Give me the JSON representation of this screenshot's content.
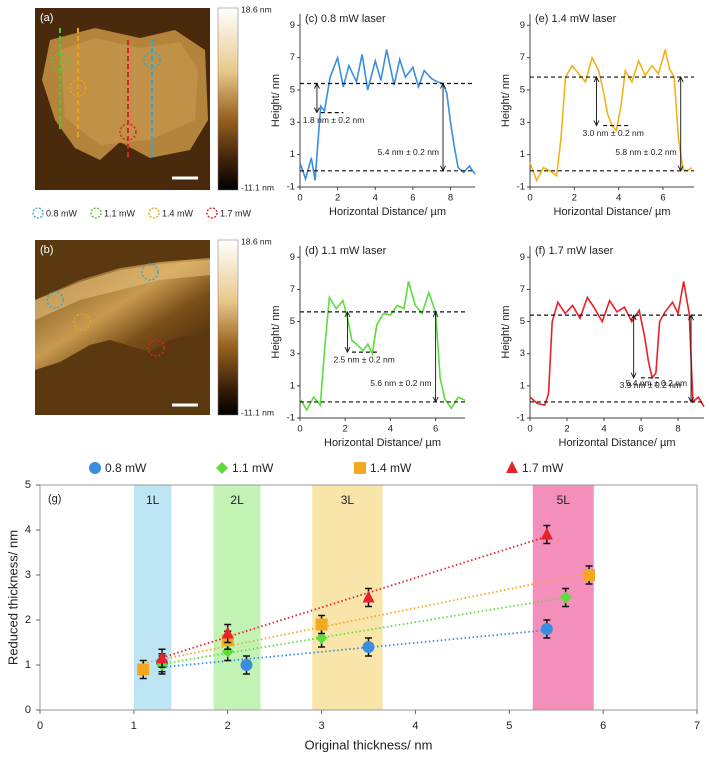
{
  "afm_panels": [
    {
      "label": "(a)",
      "colorbar_max": "18.6 nm",
      "colorbar_min": "-11.1 nm"
    },
    {
      "label": "(b)",
      "colorbar_max": "18.6 nm",
      "colorbar_min": "-11.1 nm"
    }
  ],
  "circle_legend": [
    {
      "name": "0.8 mW",
      "color": "#3aa6c8"
    },
    {
      "name": "1.1 mW",
      "color": "#58c23a"
    },
    {
      "name": "1.4 mW",
      "color": "#e8a41c"
    },
    {
      "name": "1.7 mW",
      "color": "#d3262a"
    }
  ],
  "chart_data": [
    {
      "type": "line",
      "title": "(c) 0.8 mW laser",
      "x_label": "Horizontal Distance/ µm",
      "y_label": "Height/ nm",
      "color": "#3b8de0",
      "xlim": [
        0,
        9.3
      ],
      "xticks": [
        0,
        2,
        4,
        6,
        8
      ],
      "ylim": [
        -1,
        9.7
      ],
      "yticks": [
        -1,
        1,
        3,
        5,
        7,
        9
      ],
      "x": [
        0,
        0.3,
        0.6,
        0.8,
        1.0,
        1.1,
        1.3,
        1.6,
        2.0,
        2.3,
        2.6,
        3.0,
        3.3,
        3.6,
        4.0,
        4.3,
        4.6,
        5.0,
        5.3,
        5.6,
        6.0,
        6.3,
        6.6,
        7.0,
        7.3,
        7.6,
        7.8,
        8.0,
        8.2,
        8.4,
        8.7,
        9.0,
        9.3
      ],
      "values": [
        0.5,
        -0.5,
        0.8,
        -0.6,
        2.5,
        4.0,
        3.7,
        5.8,
        7.0,
        5.2,
        6.5,
        5.5,
        7.2,
        5.0,
        6.8,
        5.6,
        7.5,
        5.3,
        6.9,
        5.8,
        6.4,
        5.2,
        6.2,
        5.7,
        5.5,
        5.4,
        4.8,
        3.0,
        1.5,
        0.2,
        -0.1,
        0.3,
        -0.2
      ],
      "levels": [
        {
          "y": 5.4,
          "from": 0,
          "to": 9.3
        },
        {
          "y": 0,
          "from": 0,
          "to": 9.3
        },
        {
          "y": 3.6,
          "from": 1.1,
          "to": 2.3
        }
      ],
      "arrows": [
        {
          "x": 7.6,
          "from": 0,
          "to": 5.4,
          "text": "5.4 nm ± 0.2 nm"
        },
        {
          "x": 0.9,
          "from": 3.6,
          "to": 5.4,
          "text": "1.8 nm ± 0.2 nm"
        }
      ]
    },
    {
      "type": "line",
      "title": "(d) 1.1 mW laser",
      "x_label": "Horizontal Distance/ µm",
      "y_label": "Height/ nm",
      "color": "#5ddc3c",
      "xlim": [
        0,
        7.3
      ],
      "xticks": [
        0,
        2,
        4,
        6
      ],
      "ylim": [
        -1,
        9.7
      ],
      "yticks": [
        -1,
        1,
        3,
        5,
        7,
        9
      ],
      "x": [
        0,
        0.3,
        0.6,
        0.9,
        1.1,
        1.3,
        1.6,
        1.9,
        2.1,
        2.3,
        2.5,
        2.8,
        3.0,
        3.2,
        3.4,
        3.7,
        4.0,
        4.3,
        4.6,
        4.8,
        5.1,
        5.4,
        5.7,
        6.0,
        6.2,
        6.4,
        6.7,
        7.0,
        7.3
      ],
      "values": [
        0.2,
        -0.5,
        0.3,
        -0.2,
        3.5,
        6.5,
        5.8,
        6.3,
        5.2,
        3.8,
        3.6,
        3.2,
        3.6,
        3.0,
        4.8,
        5.5,
        5.4,
        6.0,
        5.8,
        7.5,
        6.0,
        5.5,
        6.8,
        5.6,
        1.5,
        0.2,
        -0.4,
        0.3,
        0.1
      ],
      "levels": [
        {
          "y": 5.6,
          "from": 0,
          "to": 7.3
        },
        {
          "y": 0,
          "from": 0,
          "to": 7.3
        },
        {
          "y": 3.1,
          "from": 2.3,
          "to": 3.4
        }
      ],
      "arrows": [
        {
          "x": 6.0,
          "from": 0,
          "to": 5.6,
          "text": "5.6 nm ± 0.2 nm"
        },
        {
          "x": 2.1,
          "from": 3.1,
          "to": 5.6,
          "text": "2.5 nm ± 0.2 nm"
        }
      ]
    },
    {
      "type": "line",
      "title": "(e) 1.4 mW laser",
      "x_label": "Horizontal Distance/ µm",
      "y_label": "Height/ nm",
      "color": "#f2b21c",
      "xlim": [
        0,
        7.4
      ],
      "xticks": [
        0,
        2,
        4,
        6
      ],
      "ylim": [
        -1,
        9.7
      ],
      "yticks": [
        -1,
        1,
        3,
        5,
        7,
        9
      ],
      "x": [
        0,
        0.3,
        0.6,
        0.9,
        1.2,
        1.4,
        1.6,
        1.9,
        2.2,
        2.5,
        2.8,
        3.1,
        3.3,
        3.5,
        3.7,
        3.9,
        4.1,
        4.3,
        4.6,
        4.9,
        5.2,
        5.5,
        5.8,
        6.1,
        6.3,
        6.5,
        6.7,
        6.9,
        7.1,
        7.3
      ],
      "values": [
        0.5,
        -0.6,
        0.2,
        0.0,
        -0.3,
        2.0,
        5.8,
        6.5,
        6.0,
        5.5,
        7.0,
        6.2,
        5.0,
        3.5,
        2.8,
        2.5,
        4.0,
        6.2,
        5.5,
        6.8,
        5.9,
        6.5,
        6.0,
        7.5,
        6.3,
        5.8,
        2.0,
        0.1,
        0.0,
        0.2
      ],
      "levels": [
        {
          "y": 5.8,
          "from": 0,
          "to": 7.4
        },
        {
          "y": 0,
          "from": 0,
          "to": 7.4
        },
        {
          "y": 2.8,
          "from": 3.3,
          "to": 4.5
        }
      ],
      "arrows": [
        {
          "x": 6.8,
          "from": 0,
          "to": 5.8,
          "text": "5.8 nm ± 0.2 nm"
        },
        {
          "x": 3.0,
          "from": 2.8,
          "to": 5.8,
          "text": "3.0 nm ± 0.2 nm"
        }
      ]
    },
    {
      "type": "line",
      "title": "(f) 1.7 mW laser",
      "x_label": "Horizontal Distance/ µm",
      "y_label": "Height/ nm",
      "color": "#e8202a",
      "xlim": [
        0,
        9.4
      ],
      "xticks": [
        0,
        2,
        4,
        6,
        8
      ],
      "ylim": [
        -1,
        9.7
      ],
      "yticks": [
        -1,
        1,
        3,
        5,
        7,
        9
      ],
      "x": [
        0,
        0.4,
        0.8,
        1.0,
        1.2,
        1.5,
        1.9,
        2.3,
        2.7,
        3.1,
        3.5,
        3.9,
        4.3,
        4.7,
        5.1,
        5.5,
        5.9,
        6.2,
        6.4,
        6.6,
        6.8,
        7.0,
        7.3,
        7.7,
        8.0,
        8.3,
        8.6,
        8.8,
        9.1,
        9.4
      ],
      "values": [
        0.3,
        -0.1,
        -0.2,
        0.5,
        5.0,
        6.2,
        5.5,
        6.0,
        5.2,
        6.5,
        5.8,
        5.0,
        6.3,
        5.6,
        5.9,
        5.0,
        5.7,
        4.0,
        2.5,
        1.5,
        1.8,
        5.0,
        5.6,
        6.2,
        5.5,
        7.5,
        5.5,
        0.0,
        0.3,
        -0.3
      ],
      "levels": [
        {
          "y": 5.4,
          "from": 0,
          "to": 9.4
        },
        {
          "y": 0,
          "from": 0,
          "to": 9.4
        },
        {
          "y": 1.5,
          "from": 6.0,
          "to": 7.0
        }
      ],
      "arrows": [
        {
          "x": 8.7,
          "from": 0,
          "to": 5.4,
          "text": "5.4 nm ± 0.2 nm"
        },
        {
          "x": 5.6,
          "from": 1.5,
          "to": 5.4,
          "text": "3.9 nm ± 0.2 nm"
        }
      ]
    },
    {
      "type": "scatter",
      "label": "(g)",
      "x_label": "Original thickness/ nm",
      "y_label": "Reduced thickness/ nm",
      "xlim": [
        0,
        7
      ],
      "xticks": [
        0,
        1,
        2,
        3,
        4,
        5,
        6,
        7
      ],
      "ylim": [
        0,
        5
      ],
      "yticks": [
        0,
        1,
        2,
        3,
        4,
        5
      ],
      "trendlines": true,
      "bands": [
        {
          "label": "1L",
          "from": 1.0,
          "to": 1.4,
          "color": "#b3e0f2"
        },
        {
          "label": "2L",
          "from": 1.85,
          "to": 2.35,
          "color": "#b8f0a8"
        },
        {
          "label": "3L",
          "from": 2.9,
          "to": 3.65,
          "color": "#f8e09a"
        },
        {
          "label": "5L",
          "from": 5.25,
          "to": 5.9,
          "color": "#f27bb0"
        }
      ],
      "series": [
        {
          "name": "0.8 mW",
          "color": "#3b8de0",
          "marker": "circle",
          "x": [
            1.3,
            2.2,
            3.5,
            5.4
          ],
          "values": [
            1.05,
            1.0,
            1.4,
            1.8
          ],
          "errors": [
            0.2,
            0.2,
            0.2,
            0.2
          ]
        },
        {
          "name": "1.1 mW",
          "color": "#5ddc3c",
          "marker": "diamond",
          "x": [
            1.3,
            2.0,
            3.0,
            5.6
          ],
          "values": [
            1.0,
            1.3,
            1.6,
            2.5
          ],
          "errors": [
            0.2,
            0.2,
            0.2,
            0.2
          ]
        },
        {
          "name": "1.4 mW",
          "color": "#f4a822",
          "marker": "square",
          "x": [
            1.1,
            2.0,
            3.0,
            5.85
          ],
          "values": [
            0.9,
            1.55,
            1.9,
            3.0
          ],
          "errors": [
            0.2,
            0.2,
            0.2,
            0.2
          ]
        },
        {
          "name": "1.7 mW",
          "color": "#e8202a",
          "marker": "triangle",
          "x": [
            1.3,
            2.0,
            3.5,
            5.4
          ],
          "values": [
            1.15,
            1.7,
            2.5,
            3.9
          ],
          "errors": [
            0.2,
            0.2,
            0.2,
            0.2
          ]
        }
      ]
    }
  ]
}
